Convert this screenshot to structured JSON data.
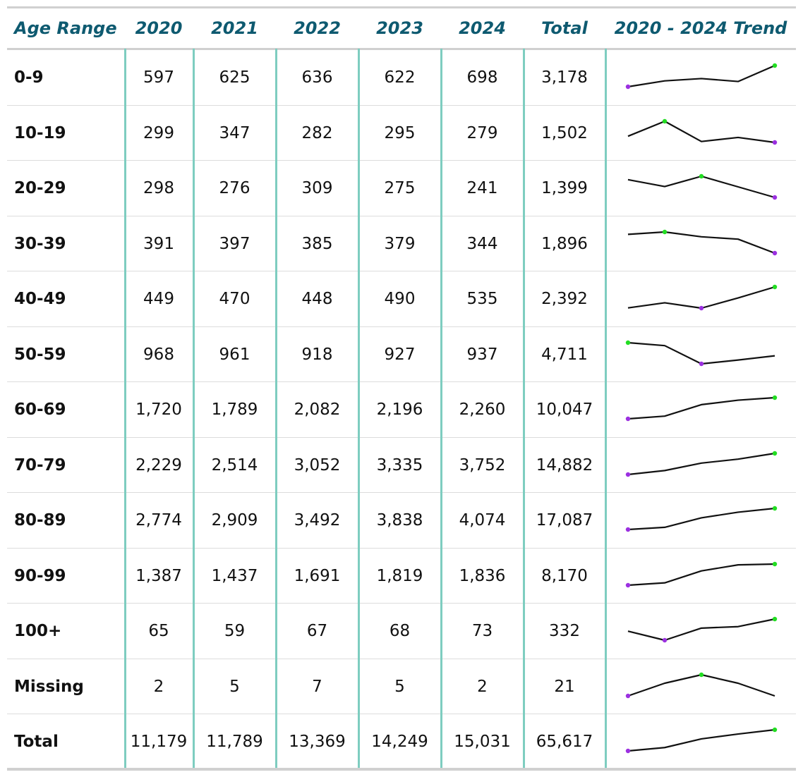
{
  "headers": [
    "Age Range",
    "2020",
    "2021",
    "2022",
    "2023",
    "2024",
    "Total",
    "2020 - 2024 Trend"
  ],
  "colors": {
    "header_text": "#0e5a70",
    "divider": "#7ecdc0",
    "rule": "#d0d0d0",
    "max_dot": "#22dd22",
    "min_dot": "#9b30e0",
    "line": "#111111"
  },
  "rows": [
    {
      "label": "0-9",
      "values": [
        "597",
        "625",
        "636",
        "622",
        "698"
      ],
      "total": "3,178",
      "trend": [
        597,
        625,
        636,
        622,
        698
      ]
    },
    {
      "label": "10-19",
      "values": [
        "299",
        "347",
        "282",
        "295",
        "279"
      ],
      "total": "1,502",
      "trend": [
        299,
        347,
        282,
        295,
        279
      ]
    },
    {
      "label": "20-29",
      "values": [
        "298",
        "276",
        "309",
        "275",
        "241"
      ],
      "total": "1,399",
      "trend": [
        298,
        276,
        309,
        275,
        241
      ]
    },
    {
      "label": "30-39",
      "values": [
        "391",
        "397",
        "385",
        "379",
        "344"
      ],
      "total": "1,896",
      "trend": [
        391,
        397,
        385,
        379,
        344
      ]
    },
    {
      "label": "40-49",
      "values": [
        "449",
        "470",
        "448",
        "490",
        "535"
      ],
      "total": "2,392",
      "trend": [
        449,
        470,
        448,
        490,
        535
      ]
    },
    {
      "label": "50-59",
      "values": [
        "968",
        "961",
        "918",
        "927",
        "937"
      ],
      "total": "4,711",
      "trend": [
        968,
        961,
        918,
        927,
        937
      ]
    },
    {
      "label": "60-69",
      "values": [
        "1,720",
        "1,789",
        "2,082",
        "2,196",
        "2,260"
      ],
      "total": "10,047",
      "trend": [
        1720,
        1789,
        2082,
        2196,
        2260
      ]
    },
    {
      "label": "70-79",
      "values": [
        "2,229",
        "2,514",
        "3,052",
        "3,335",
        "3,752"
      ],
      "total": "14,882",
      "trend": [
        2229,
        2514,
        3052,
        3335,
        3752
      ]
    },
    {
      "label": "80-89",
      "values": [
        "2,774",
        "2,909",
        "3,492",
        "3,838",
        "4,074"
      ],
      "total": "17,087",
      "trend": [
        2774,
        2909,
        3492,
        3838,
        4074
      ]
    },
    {
      "label": "90-99",
      "values": [
        "1,387",
        "1,437",
        "1,691",
        "1,819",
        "1,836"
      ],
      "total": "8,170",
      "trend": [
        1387,
        1437,
        1691,
        1819,
        1836
      ]
    },
    {
      "label": "100+",
      "values": [
        "65",
        "59",
        "67",
        "68",
        "73"
      ],
      "total": "332",
      "trend": [
        65,
        59,
        67,
        68,
        73
      ]
    },
    {
      "label": "Missing",
      "values": [
        "2",
        "5",
        "7",
        "5",
        "2"
      ],
      "total": "21",
      "trend": [
        2,
        5,
        7,
        5,
        2
      ]
    },
    {
      "label": "Total",
      "values": [
        "11,179",
        "11,789",
        "13,369",
        "14,249",
        "15,031"
      ],
      "total": "65,617",
      "trend": [
        11179,
        11789,
        13369,
        14249,
        15031
      ]
    }
  ]
}
